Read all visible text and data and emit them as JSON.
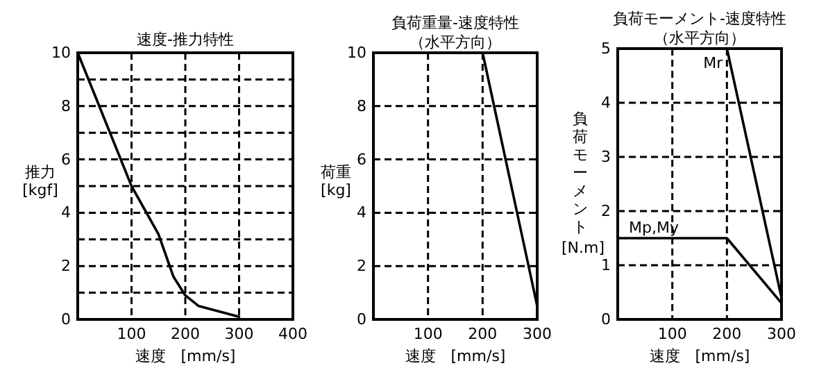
{
  "chart_data": [
    {
      "type": "line",
      "title": "速度-推力特性",
      "xlabel": "速度　[mm/s]",
      "ylabel": "推力 [kgf]",
      "xlim": [
        0,
        400
      ],
      "xticks": [
        100,
        200,
        300,
        400
      ],
      "ylim": [
        0,
        10
      ],
      "yticks": [
        0,
        {
          "value": 1,
          "label": null
        },
        2,
        {
          "value": 3,
          "label": null
        },
        4,
        {
          "value": 5,
          "label": null
        },
        6,
        {
          "value": 7,
          "label": null
        },
        8,
        {
          "value": 9,
          "label": null
        },
        10
      ],
      "grid": true,
      "series": [
        {
          "color": "#000000",
          "x": [
            0,
            100,
            150,
            178,
            200,
            225,
            300
          ],
          "values": [
            10,
            5,
            3.2,
            1.6,
            0.9,
            0.5,
            0.1
          ]
        }
      ]
    },
    {
      "type": "line",
      "title": "負荷重量-速度特性",
      "subtitle": "（水平方向）",
      "xlabel": "速度　[mm/s]",
      "ylabel": "荷重 [kg]",
      "xlim": [
        0,
        300
      ],
      "xticks": [
        100,
        200,
        300
      ],
      "ylim": [
        0,
        10
      ],
      "yticks": [
        0,
        2,
        4,
        6,
        8,
        10
      ],
      "grid": true,
      "series": [
        {
          "color": "#000000",
          "x": [
            200,
            300
          ],
          "values": [
            10,
            0.5
          ]
        }
      ]
    },
    {
      "type": "line",
      "title": "負荷モーメント-速度特性",
      "subtitle": "（水平方向）",
      "xlabel": "速度　[mm/s]",
      "ylabel": "負荷モーメント [N.m]",
      "xlim": [
        0,
        300
      ],
      "xticks": [
        100,
        200,
        300
      ],
      "ylim": [
        0,
        5
      ],
      "yticks": [
        0,
        1,
        2,
        3,
        4,
        5
      ],
      "grid": true,
      "series": [
        {
          "name": "Mr",
          "color": "#000000",
          "x": [
            200,
            300
          ],
          "values": [
            5,
            0.4
          ]
        },
        {
          "name": "Mp,My",
          "color": "#000000",
          "x": [
            0,
            200,
            300
          ],
          "values": [
            1.5,
            1.5,
            0.3
          ]
        }
      ]
    }
  ]
}
